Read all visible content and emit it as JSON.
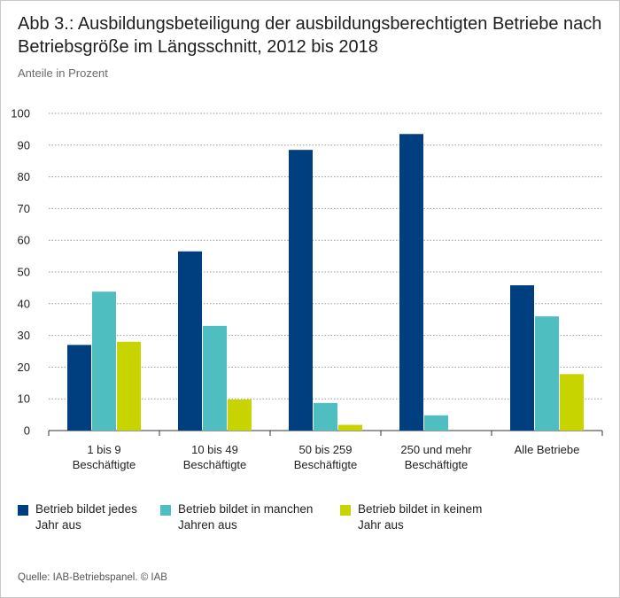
{
  "figure": {
    "title": "Abb 3.: Ausbildungsbeteiligung der ausbildungsberechtigten Betriebe nach Betriebsgröße im Längsschnitt, 2012 bis 2018",
    "subtitle": "Anteile in Prozent",
    "source": "Quelle: IAB-Betriebspanel. © IAB"
  },
  "chart_data": {
    "type": "bar",
    "title": "Abb 3.: Ausbildungsbeteiligung der ausbildungsberechtigten Betriebe nach Betriebsgröße im Längsschnitt, 2012 bis 2018",
    "ylabel": "Anteile in Prozent",
    "xlabel": "",
    "ylim": [
      0,
      100
    ],
    "yticks": [
      0,
      10,
      20,
      30,
      40,
      50,
      60,
      70,
      80,
      90,
      100
    ],
    "grid": true,
    "legend_position": "bottom",
    "categories": [
      "1 bis 9\nBeschäftigte",
      "10 bis 49\nBeschäftigte",
      "50 bis 259\nBeschäftigte",
      "250 und mehr\nBeschäftigte",
      "Alle Betriebe"
    ],
    "series": [
      {
        "name": "Betrieb bildet jedes\nJahr aus",
        "color": "#003f7f",
        "values": [
          27,
          56.5,
          88.5,
          93.5,
          45.8
        ]
      },
      {
        "name": "Betrieb bildet in manchen\nJahren aus",
        "color": "#4fbec0",
        "values": [
          43.8,
          33,
          8.7,
          4.8,
          36
        ]
      },
      {
        "name": "Betrieb bildet in keinem\nJahr aus",
        "color": "#c8d400",
        "values": [
          28,
          9.8,
          1.8,
          0,
          17.8
        ]
      }
    ]
  }
}
